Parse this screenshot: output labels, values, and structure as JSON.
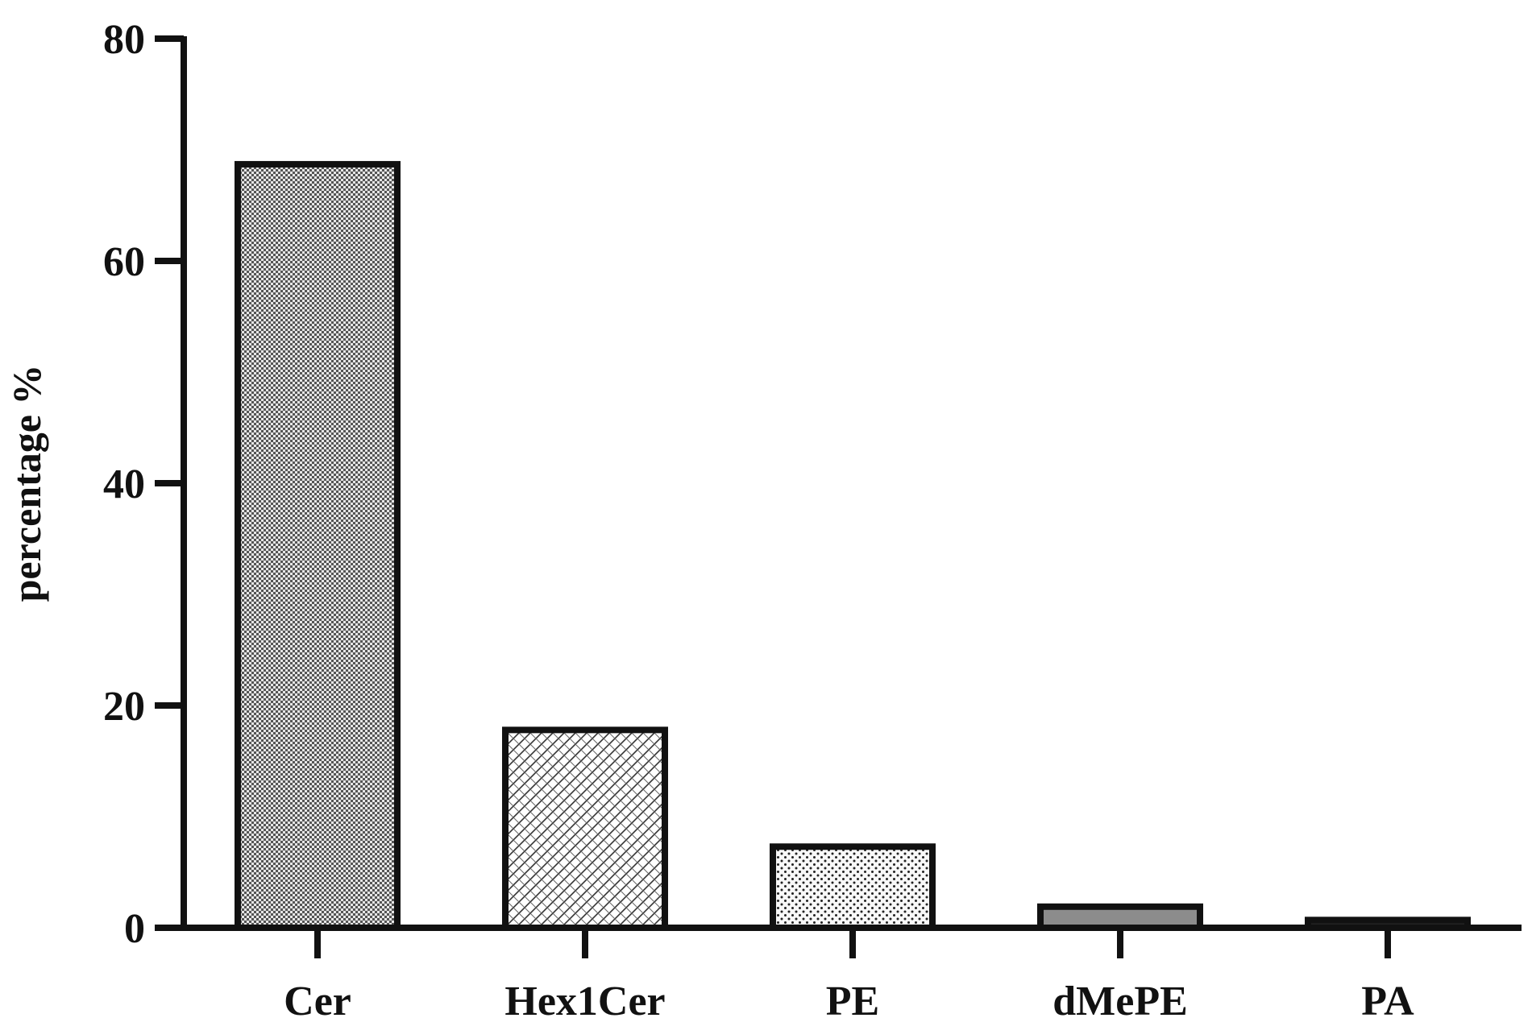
{
  "chart_data": {
    "type": "bar",
    "categories": [
      "Cer",
      "Hex1Cer",
      "PE",
      "dMePE",
      "PA"
    ],
    "values": [
      68.7,
      17.8,
      7.3,
      1.9,
      0.7
    ],
    "title": "",
    "xlabel": "",
    "ylabel": "percentage %",
    "ylim": [
      0,
      80
    ],
    "yticks": [
      "0",
      "20",
      "40",
      "60",
      "80"
    ],
    "grid": false,
    "legend": "none",
    "bar_fills": [
      "checker-fine",
      "cross-hatch",
      "dots",
      "solid-gray",
      "solid-dark"
    ],
    "colors": {
      "axis": "#111111",
      "bar_edge": "#111111",
      "gray_fill": "#8c8c8c",
      "dark_fill": "#222222"
    }
  }
}
